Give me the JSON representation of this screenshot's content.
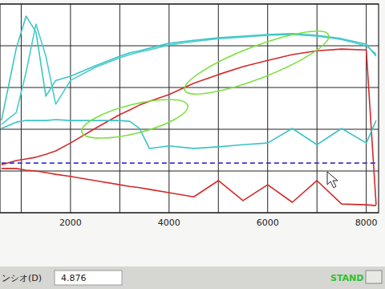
{
  "chart_data": {
    "type": "line",
    "x": [
      600,
      900,
      1100,
      1300,
      1500,
      1700,
      2000,
      2500,
      3000,
      3200,
      3400,
      3600,
      4000,
      4500,
      5000,
      5500,
      6000,
      6500,
      7000,
      7500,
      8000,
      8200
    ],
    "xlim": [
      570,
      8250
    ],
    "xticks": [
      2000,
      4000,
      6000,
      8000
    ],
    "ylim": [
      0,
      5
    ],
    "yticks": [
      0,
      1,
      2,
      3,
      4,
      5
    ],
    "grid": true,
    "tick_labels": "x",
    "series": [
      {
        "color": "#3cc4c4",
        "line_style": "solid",
        "values": [
          2.21,
          3.94,
          4.71,
          4.33,
          2.79,
          3.17,
          3.27,
          3.52,
          3.75,
          3.83,
          3.88,
          3.94,
          4.06,
          4.13,
          4.19,
          4.23,
          4.27,
          4.29,
          4.25,
          4.17,
          4.04,
          3.75
        ]
      },
      {
        "color": "#48cccc",
        "line_style": "solid",
        "values": [
          2.12,
          2.4,
          3.37,
          4.52,
          3.75,
          2.6,
          3.17,
          3.48,
          3.71,
          3.79,
          3.85,
          3.9,
          4.02,
          4.1,
          4.17,
          4.21,
          4.25,
          4.27,
          4.23,
          4.15,
          4.0,
          3.8
        ]
      },
      {
        "color": "#d42a2a",
        "line_style": "solid",
        "values": [
          1.15,
          1.25,
          1.29,
          1.33,
          1.4,
          1.48,
          1.67,
          2.02,
          2.35,
          2.46,
          2.58,
          2.67,
          2.83,
          3.1,
          3.31,
          3.5,
          3.65,
          3.79,
          3.88,
          3.92,
          3.9,
          0.19
        ]
      },
      {
        "color": "#3cc4c4",
        "line_style": "solid",
        "values": [
          2.02,
          2.17,
          2.21,
          2.21,
          2.21,
          2.23,
          2.21,
          2.21,
          2.21,
          2.19,
          2.02,
          1.54,
          1.6,
          1.54,
          1.58,
          1.63,
          1.67,
          2.02,
          1.63,
          2.02,
          1.67,
          2.21
        ]
      },
      {
        "color": "#d42a2a",
        "line_style": "solid",
        "values": [
          1.06,
          1.06,
          1.02,
          1.0,
          0.96,
          0.92,
          0.87,
          0.77,
          0.67,
          0.63,
          0.6,
          0.56,
          0.48,
          0.38,
          0.77,
          0.29,
          0.67,
          0.25,
          0.77,
          0.21,
          0.19,
          0.17
        ]
      },
      {
        "color": "#3a3acc",
        "line_style": "dashed",
        "values": [
          1.19,
          1.19,
          1.19,
          1.19,
          1.19,
          1.19,
          1.19,
          1.19,
          1.19,
          1.19,
          1.19,
          1.19,
          1.19,
          1.19,
          1.19,
          1.19,
          1.19,
          1.19,
          1.19,
          1.19,
          1.19,
          1.19
        ]
      }
    ],
    "annotations": [
      "ンシオ(D)",
      "4.876",
      "STAND"
    ]
  }
}
